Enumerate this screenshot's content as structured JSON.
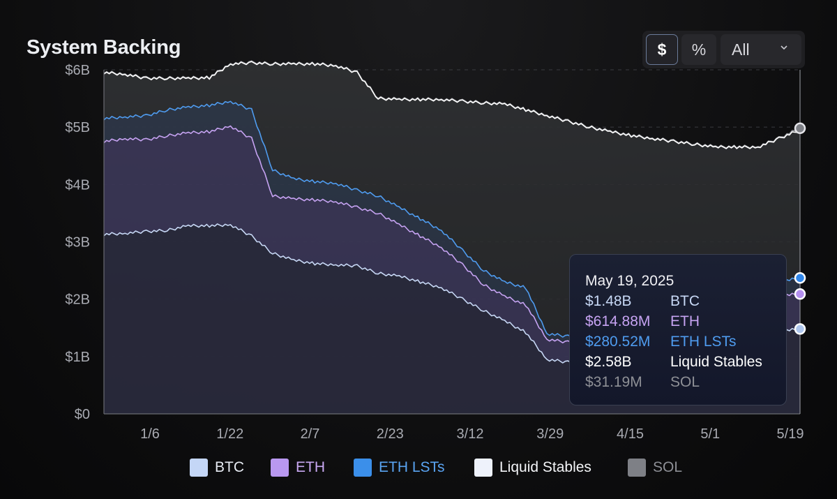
{
  "title": "System Backing",
  "controls": {
    "unit_buttons": [
      {
        "label": "$",
        "active": true
      },
      {
        "label": "%",
        "active": false
      }
    ],
    "range_select": {
      "value": "All"
    }
  },
  "tooltip": {
    "date": "May 19, 2025",
    "rows": [
      {
        "value": "$1.48B",
        "name": "BTC",
        "color": "#c7d8f5"
      },
      {
        "value": "$614.88M",
        "name": "ETH",
        "color": "#c6a3f2"
      },
      {
        "value": "$280.52M",
        "name": "ETH LSTs",
        "color": "#4f9cf0"
      },
      {
        "value": "$2.58B",
        "name": "Liquid Stables",
        "color": "#ffffff"
      },
      {
        "value": "$31.19M",
        "name": "SOL",
        "color": "#8e9096"
      }
    ]
  },
  "legend": [
    {
      "label": "BTC",
      "color": "#c4d6f6",
      "text_color": "#e7ebf3"
    },
    {
      "label": "ETH",
      "color": "#b998f0",
      "text_color": "#c9a9f3"
    },
    {
      "label": "ETH LSTs",
      "color": "#3b8fea",
      "text_color": "#5aa4f2"
    },
    {
      "label": "Liquid Stables",
      "color": "#eef2fb",
      "text_color": "#f4f5f8"
    },
    {
      "label": "SOL",
      "color": "#7e8086",
      "text_color": "#8d8f95"
    }
  ],
  "chart_data": {
    "type": "area",
    "stacked": true,
    "title": "System Backing",
    "ylim": [
      0,
      6000000000
    ],
    "yticks": [
      "$0",
      "$1B",
      "$2B",
      "$3B",
      "$4B",
      "$5B",
      "$6B"
    ],
    "xticks": [
      "1/6",
      "1/22",
      "2/7",
      "2/23",
      "3/12",
      "3/29",
      "4/15",
      "5/1",
      "5/19"
    ],
    "grid": "horizontal-dashed",
    "legend_position": "bottom",
    "unit": "USD",
    "x": [
      "1/1",
      "1/6",
      "1/12",
      "1/18",
      "1/22",
      "1/28",
      "2/1",
      "2/4",
      "2/7",
      "2/10",
      "2/14",
      "2/18",
      "2/23",
      "2/28",
      "3/4",
      "3/8",
      "3/12",
      "3/16",
      "3/20",
      "3/24",
      "3/26",
      "3/29",
      "4/1",
      "4/4",
      "4/8",
      "4/12",
      "4/15",
      "4/20",
      "4/25",
      "5/1",
      "5/6",
      "5/11",
      "5/15",
      "5/19"
    ],
    "series": [
      {
        "name": "BTC",
        "color": "#c7d8f5",
        "values": [
          3.13,
          3.15,
          3.18,
          3.2,
          3.28,
          3.28,
          3.3,
          3.1,
          2.8,
          2.68,
          2.62,
          2.6,
          2.58,
          2.45,
          2.4,
          2.3,
          2.2,
          2.0,
          1.8,
          1.62,
          1.42,
          0.95,
          0.9,
          0.9,
          0.88,
          0.95,
          1.05,
          1.1,
          1.25,
          1.35,
          1.4,
          1.42,
          1.44,
          1.48
        ]
      },
      {
        "name": "ETH",
        "color": "#c6a3f2",
        "values": [
          4.75,
          4.8,
          4.78,
          4.85,
          4.9,
          4.92,
          5.02,
          4.8,
          3.8,
          3.75,
          3.73,
          3.7,
          3.6,
          3.5,
          3.3,
          3.1,
          2.9,
          2.6,
          2.25,
          2.05,
          1.9,
          1.3,
          1.25,
          1.25,
          1.22,
          1.3,
          1.45,
          1.55,
          1.75,
          1.9,
          1.98,
          2.03,
          2.06,
          2.09
        ]
      },
      {
        "name": "ETH LSTs",
        "color": "#4f9cf0",
        "values": [
          5.15,
          5.18,
          5.2,
          5.3,
          5.35,
          5.38,
          5.45,
          5.3,
          4.25,
          4.1,
          4.05,
          4.02,
          3.9,
          3.8,
          3.6,
          3.4,
          3.2,
          2.85,
          2.5,
          2.3,
          2.2,
          1.4,
          1.35,
          1.35,
          1.32,
          1.4,
          1.6,
          1.72,
          1.95,
          2.1,
          2.2,
          2.25,
          2.3,
          2.37
        ]
      },
      {
        "name": "Liquid Stables",
        "color": "#ffffff",
        "values": [
          5.95,
          5.92,
          5.85,
          5.85,
          5.85,
          5.86,
          6.1,
          6.12,
          6.1,
          6.1,
          6.1,
          6.07,
          5.95,
          5.5,
          5.48,
          5.48,
          5.48,
          5.45,
          5.42,
          5.4,
          5.3,
          5.2,
          5.1,
          5.0,
          4.92,
          4.85,
          4.8,
          4.75,
          4.7,
          4.65,
          4.65,
          4.65,
          4.8,
          4.95
        ]
      },
      {
        "name": "SOL",
        "color": "#8e9096",
        "values": [
          5.96,
          5.93,
          5.86,
          5.86,
          5.86,
          5.87,
          6.11,
          6.13,
          6.11,
          6.11,
          6.11,
          6.08,
          5.96,
          5.51,
          5.49,
          5.49,
          5.49,
          5.46,
          5.43,
          5.41,
          5.31,
          5.21,
          5.11,
          5.01,
          4.93,
          4.86,
          4.81,
          4.76,
          4.71,
          4.66,
          4.66,
          4.66,
          4.81,
          4.98
        ]
      }
    ],
    "value_scale": "billions_cumulative"
  }
}
